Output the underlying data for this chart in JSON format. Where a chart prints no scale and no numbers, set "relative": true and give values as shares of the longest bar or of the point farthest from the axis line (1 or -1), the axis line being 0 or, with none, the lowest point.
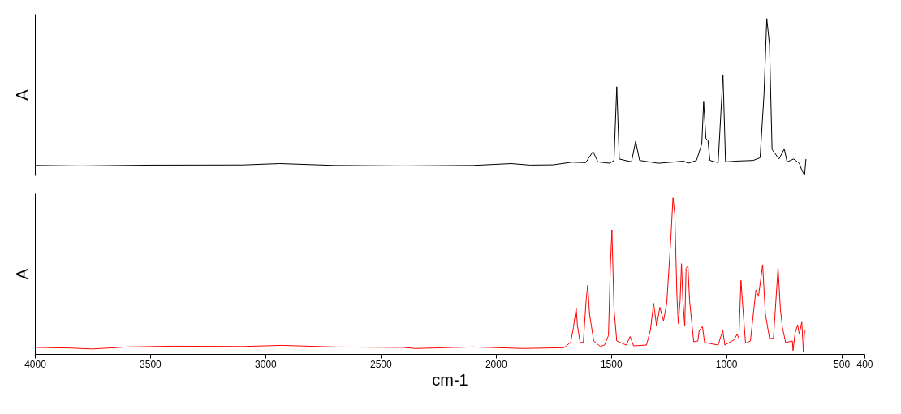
{
  "chart_data": [
    {
      "type": "line",
      "ylabel": "A",
      "relative": true,
      "xlim": [
        4000,
        400
      ],
      "tick_labels": false,
      "series": [
        {
          "color": "#000000",
          "x": [
            4000,
            3800,
            3500,
            3100,
            2937,
            2700,
            2400,
            2100,
            1933,
            1850,
            1751,
            1669,
            1610,
            1578,
            1557,
            1505,
            1487,
            1475,
            1464,
            1411,
            1393,
            1376,
            1294,
            1235,
            1184,
            1165,
            1129,
            1106,
            1098,
            1088,
            1079,
            1071,
            1035,
            1014,
            1003,
            953,
            883,
            853,
            836,
            824,
            812,
            801,
            771,
            748,
            736,
            707,
            683,
            672,
            660,
            654
          ],
          "values": [
            0.063,
            0.06,
            0.065,
            0.066,
            0.075,
            0.063,
            0.06,
            0.063,
            0.075,
            0.065,
            0.067,
            0.084,
            0.081,
            0.151,
            0.086,
            0.077,
            0.095,
            0.565,
            0.104,
            0.086,
            0.217,
            0.095,
            0.077,
            0.084,
            0.091,
            0.077,
            0.095,
            0.2,
            0.468,
            0.235,
            0.221,
            0.095,
            0.081,
            0.642,
            0.086,
            0.091,
            0.095,
            0.112,
            0.516,
            1.0,
            0.832,
            0.165,
            0.104,
            0.168,
            0.086,
            0.104,
            0.077,
            0.033,
            0.0,
            0.104
          ]
        }
      ]
    },
    {
      "type": "line",
      "ylabel": "A",
      "xlabel": "cm-1",
      "relative": true,
      "xlim": [
        4000,
        400
      ],
      "xticks": [
        4000,
        3500,
        3000,
        2500,
        2000,
        1500,
        1000,
        500,
        400
      ],
      "tick_labels": "x",
      "series": [
        {
          "color": "#ff0000",
          "x": [
            4000,
            3850,
            3750,
            3600,
            3400,
            3100,
            2930,
            2700,
            2400,
            2350,
            2100,
            1880,
            1704,
            1675,
            1663,
            1651,
            1646,
            1634,
            1620,
            1608,
            1601,
            1593,
            1575,
            1546,
            1528,
            1511,
            1503,
            1496,
            1487,
            1475,
            1434,
            1417,
            1402,
            1346,
            1329,
            1315,
            1302,
            1288,
            1272,
            1258,
            1241,
            1231,
            1223,
            1214,
            1208,
            1200,
            1194,
            1188,
            1180,
            1174,
            1166,
            1159,
            1141,
            1123,
            1117,
            1103,
            1094,
            1035,
            1015,
            1006,
            965,
            953,
            945,
            936,
            930,
            916,
            895,
            871,
            860,
            842,
            830,
            812,
            795,
            775,
            765,
            756,
            742,
            713,
            710,
            701,
            690,
            683,
            672,
            665,
            660,
            653
          ],
          "values": [
            0.042,
            0.038,
            0.032,
            0.045,
            0.05,
            0.048,
            0.055,
            0.045,
            0.042,
            0.035,
            0.045,
            0.035,
            0.04,
            0.074,
            0.169,
            0.294,
            0.187,
            0.074,
            0.074,
            0.342,
            0.442,
            0.255,
            0.083,
            0.048,
            0.057,
            0.118,
            0.549,
            0.796,
            0.29,
            0.083,
            0.057,
            0.112,
            0.052,
            0.057,
            0.152,
            0.325,
            0.178,
            0.299,
            0.212,
            0.325,
            0.722,
            1.0,
            0.895,
            0.377,
            0.195,
            0.342,
            0.579,
            0.342,
            0.178,
            0.549,
            0.563,
            0.342,
            0.078,
            0.083,
            0.152,
            0.175,
            0.074,
            0.057,
            0.152,
            0.057,
            0.092,
            0.126,
            0.1,
            0.472,
            0.342,
            0.069,
            0.083,
            0.411,
            0.368,
            0.572,
            0.255,
            0.1,
            0.1,
            0.554,
            0.29,
            0.169,
            0.074,
            0.083,
            0.022,
            0.135,
            0.187,
            0.126,
            0.204,
            0.01,
            0.152,
            0.152
          ]
        }
      ]
    }
  ]
}
